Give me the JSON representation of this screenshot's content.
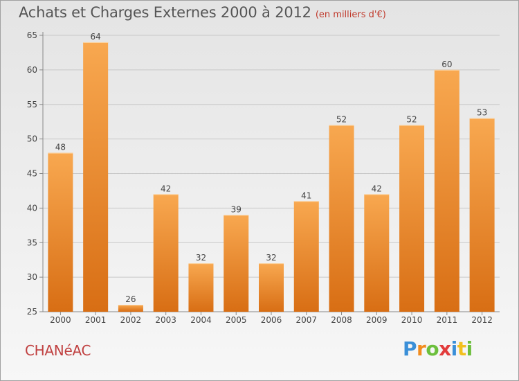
{
  "title": "Achats et Charges Externes 2000 à 2012",
  "subtitle": "(en milliers d'€)",
  "location": "CHANéAC",
  "brand": {
    "letters": [
      "P",
      "r",
      "o",
      "x",
      "i",
      "t",
      "i"
    ],
    "colors": [
      "#3a8fd8",
      "#f28c1e",
      "#6cbf3c",
      "#e23b3b",
      "#3a8fd8",
      "#f2c01e",
      "#6cbf3c"
    ]
  },
  "colors": {
    "bar_top": "#f8a850",
    "bar_bottom": "#d86e14",
    "axis": "#888888",
    "grid": "#c8c8c8"
  },
  "chart_data": {
    "type": "bar",
    "categories": [
      "2000",
      "2001",
      "2002",
      "2003",
      "2004",
      "2005",
      "2006",
      "2007",
      "2008",
      "2009",
      "2010",
      "2011",
      "2012"
    ],
    "values": [
      48,
      64,
      26,
      42,
      32,
      39,
      32,
      41,
      52,
      42,
      52,
      60,
      53
    ],
    "data_labels": [
      "48",
      "64",
      "26",
      "42",
      "32",
      "39",
      "32",
      "41",
      "52",
      "42",
      "52",
      "60",
      "53"
    ],
    "yticks": [
      25,
      30,
      35,
      40,
      45,
      50,
      55,
      60,
      65
    ],
    "ytick_labels": [
      "25",
      "30",
      "35",
      "40",
      "45",
      "50",
      "55",
      "60",
      "65"
    ],
    "ylim": [
      25,
      65
    ],
    "xlabel": "",
    "ylabel": "",
    "grid": true,
    "legend": "none"
  }
}
